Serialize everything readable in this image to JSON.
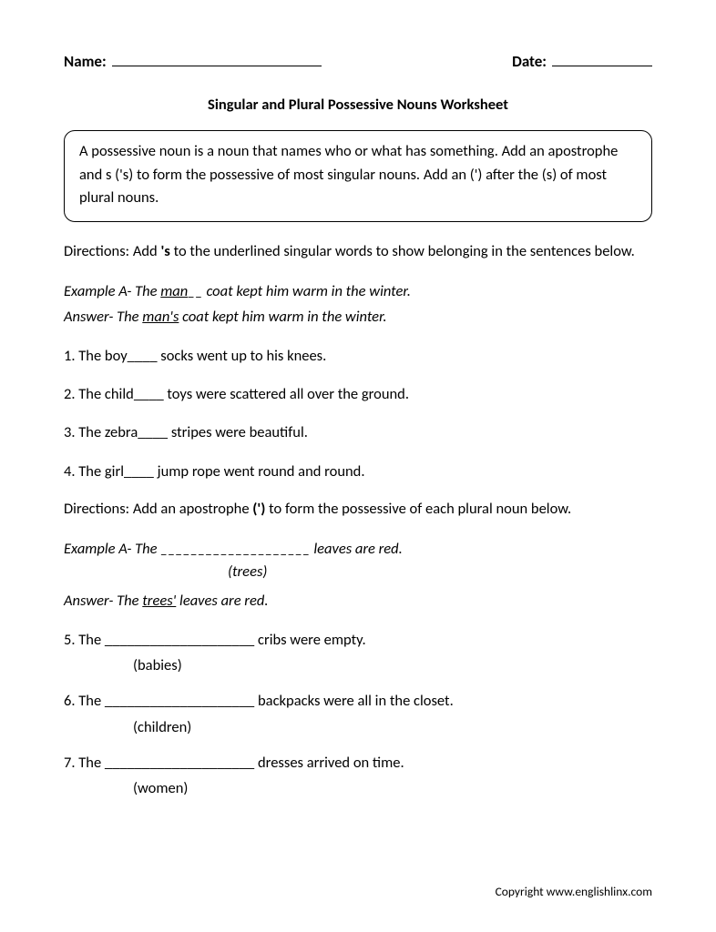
{
  "header": {
    "name_label": "Name:",
    "date_label": "Date:"
  },
  "title": "Singular and Plural Possessive Nouns Worksheet",
  "definition_box": "A possessive noun is a noun that names who or what has something. Add an apostrophe and s ('s) to form the possessive of most singular nouns. Add an (') after the (s) of most plural nouns.",
  "directions1": {
    "prefix": "Directions: Add ",
    "bold": "'s",
    "suffix": " to the underlined singular words to show belonging in the sentences below."
  },
  "example1": {
    "lineA_prefix": "Example A- The ",
    "lineA_uword": "man",
    "lineA_blank": "__",
    "lineA_suffix": " coat kept him warm in the winter.",
    "lineB_prefix": "Answer- The ",
    "lineB_uword": "man's",
    "lineB_suffix": " coat kept him warm in the winter."
  },
  "items1": [
    {
      "num": "1.",
      "prefix": " The boy",
      "blank": "____",
      "suffix": " socks went up to his knees."
    },
    {
      "num": "2.",
      "prefix": " The child",
      "blank": "____",
      "suffix": " toys were scattered all over the ground."
    },
    {
      "num": "3.",
      "prefix": " The zebra",
      "blank": "____",
      "suffix": " stripes were beautiful."
    },
    {
      "num": "4.",
      "prefix": " The girl",
      "blank": "____",
      "suffix": " jump rope went round and round."
    }
  ],
  "directions2": {
    "prefix": "Directions: Add an apostrophe ",
    "bold": "(')",
    "suffix": " to form the possessive of each plural noun below."
  },
  "example2": {
    "lineA_prefix": "Example A- The ",
    "lineA_blank": "____________________",
    "lineA_suffix": " leaves are red.",
    "hint": "(trees)",
    "lineB_prefix": "Answer- The ",
    "lineB_uword": "trees'",
    "lineB_suffix": " leaves are red."
  },
  "items2": [
    {
      "num": "5.",
      "prefix": " The ",
      "blank": "____________________",
      "suffix": " cribs were empty.",
      "hint": "(babies)"
    },
    {
      "num": "6.",
      "prefix": " The ",
      "blank": "____________________",
      "suffix": " backpacks were all in the closet.",
      "hint": "(children)"
    },
    {
      "num": "7.",
      "prefix": "  The ",
      "blank": "____________________",
      "suffix": " dresses arrived on time.",
      "hint": "(women)"
    }
  ],
  "copyright": "Copyright www.englishlinx.com"
}
